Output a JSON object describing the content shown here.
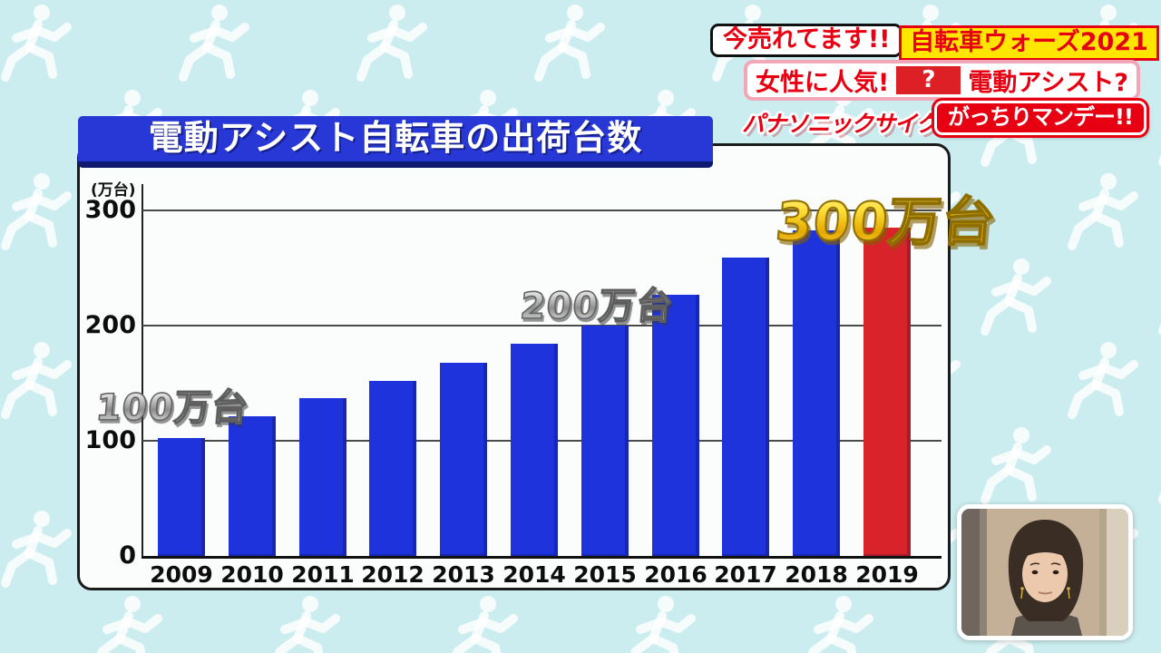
{
  "background": {
    "base_color": "#cbedf0",
    "pictogram": "running-person-pattern",
    "pictogram_color": "#ffffff"
  },
  "overlay": {
    "now_selling": "今売れてます!!",
    "series_title": "自転車ウォーズ2021",
    "popular_with_women": "女性に人気!",
    "question_mark": "?",
    "electric_assist": "電動アシスト?",
    "company": "パナソニックサイクルテック",
    "program_logo": "がっちりマンデー!!",
    "colors": {
      "red": "#e60012",
      "yellow": "#ffe600",
      "pink_border": "#f2a7b8"
    }
  },
  "chart_data": {
    "type": "bar",
    "title": "電動アシスト自転車の出荷台数",
    "unit_label": "(万台)",
    "categories": [
      "2009",
      "2010",
      "2011",
      "2012",
      "2013",
      "2014",
      "2015",
      "2016",
      "2017",
      "2018",
      "2019"
    ],
    "values": [
      102,
      121,
      137,
      152,
      168,
      184,
      200,
      227,
      259,
      283,
      285
    ],
    "bar_color": "#1e33db",
    "highlight_color": "#d9232b",
    "highlight_index": 10,
    "yticks": [
      0,
      100,
      200,
      300
    ],
    "ylim": [
      0,
      330
    ],
    "grid": true,
    "legend": "none",
    "annotations": [
      {
        "text": "100万台",
        "style": "silver",
        "near_category": "2009"
      },
      {
        "text": "200万台",
        "style": "silver",
        "near_category": "2015"
      },
      {
        "text": "300万台",
        "style": "gold",
        "near_category": "2019"
      }
    ]
  },
  "inset": {
    "description": "studio presenter close-up"
  }
}
